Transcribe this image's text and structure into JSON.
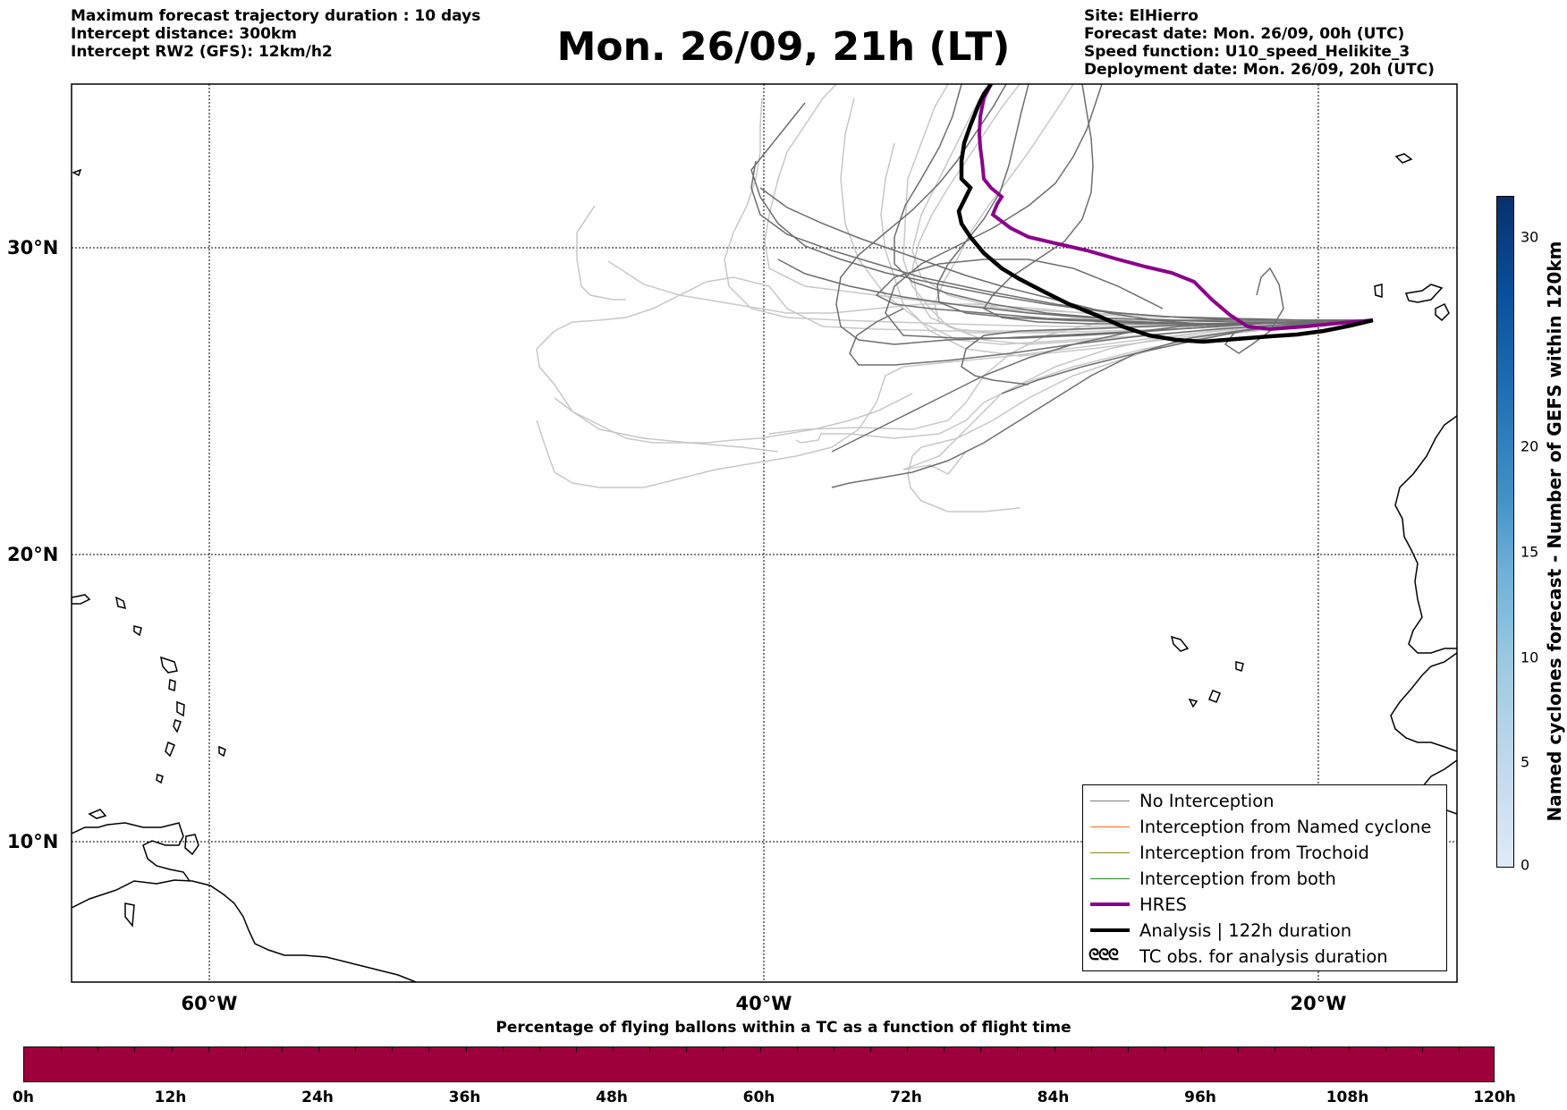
{
  "header": {
    "left_lines": [
      "Maximum forecast trajectory duration : 10 days",
      "Intercept distance: 300km",
      "Intercept RW2 (GFS):  12km/h2"
    ],
    "title": "Mon. 26/09, 21h (LT)",
    "right_lines": [
      "Site: ElHierro",
      "Forecast date: Mon. 26/09, 00h (UTC)",
      "Speed function: U10_speed_Helikite_3",
      "Deployment date: Mon. 26/09, 20h (UTC)"
    ]
  },
  "map": {
    "lat_labels": [
      "30°N",
      "20°N",
      "10°N"
    ],
    "lon_labels": [
      "60°W",
      "40°W",
      "20°W"
    ]
  },
  "legend": {
    "items": [
      {
        "label": "No Interception",
        "color": "#808080",
        "width": 1.2
      },
      {
        "label": "Interception from Named cyclone",
        "color": "#ff6a2a",
        "width": 1.2
      },
      {
        "label": "Interception from Trochoid",
        "color": "#8b8b1a",
        "width": 1.2
      },
      {
        "label": "Interception from both",
        "color": "#228b22",
        "width": 1.2
      },
      {
        "label": "HRES",
        "color": "#8b008b",
        "width": 4
      },
      {
        "label": "Analysis | 122h duration",
        "color": "#000000",
        "width": 4.5
      },
      {
        "label": "TC obs. for analysis duration",
        "symbol": "ᘓᘓᘓ"
      }
    ]
  },
  "percent_bar": {
    "title": "Percentage of flying ballons within a TC as a function of flight time",
    "color": "#9e003b",
    "ticks": [
      "0h",
      "12h",
      "24h",
      "36h",
      "48h",
      "60h",
      "72h",
      "84h",
      "96h",
      "108h",
      "120h"
    ]
  },
  "colorbar": {
    "title": "Named cyclones forecast - Number of GEFS within 120km",
    "ticks": [
      "0",
      "5",
      "10",
      "15",
      "20",
      "30"
    ]
  }
}
